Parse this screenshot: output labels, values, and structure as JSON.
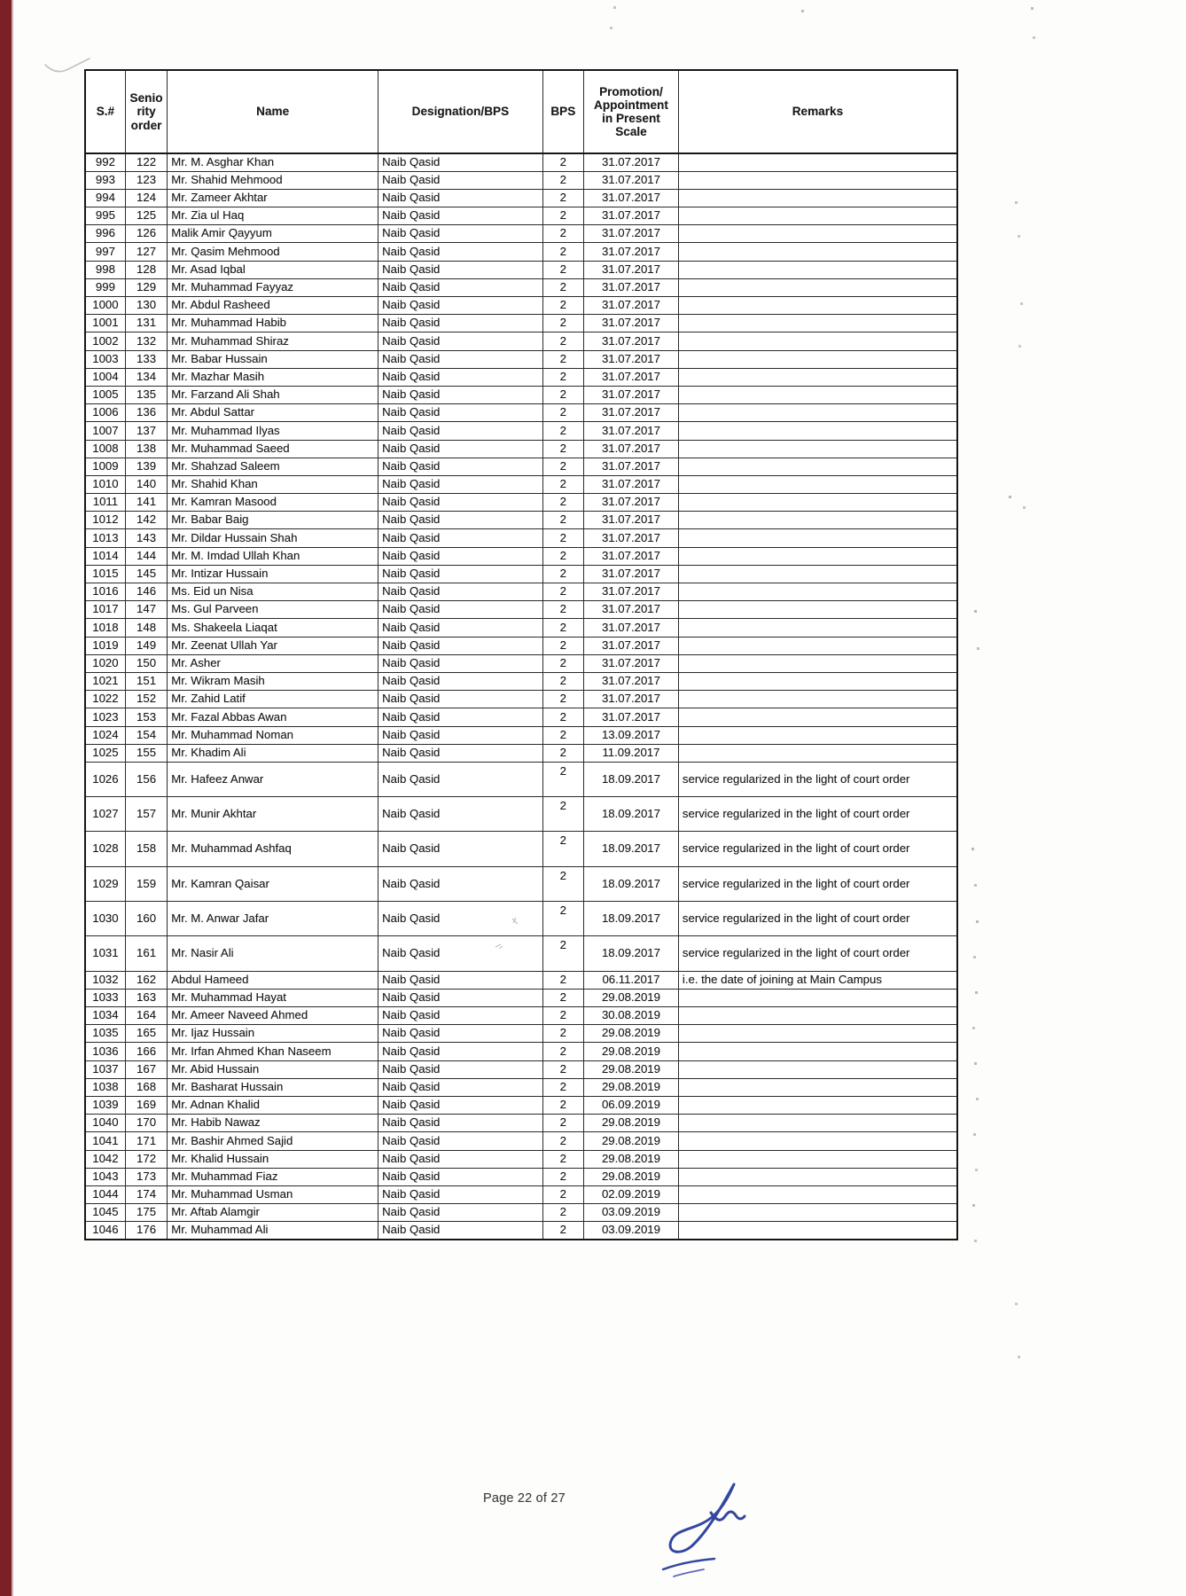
{
  "document": {
    "footer_text": "Page 22 of 27",
    "icons": {
      "signature": "ink-signature-flourish",
      "pen_mark": "stray-pen-mark"
    },
    "colors": {
      "ink": "#1a1a1a",
      "signature_ink": "#33479f",
      "scan_edge": "#7b2125"
    }
  },
  "table": {
    "headers": {
      "serial": "S.#",
      "seniority": "Senio\nrity\norder",
      "name": "Name",
      "designation": "Designation/BPS",
      "bps": "BPS",
      "promotion": "Promotion/\nAppointment\nin Present\nScale",
      "remarks": "Remarks"
    },
    "rows": [
      {
        "sno": "992",
        "order": "122",
        "name": "Mr. M. Asghar Khan",
        "designation": "Naib Qasid",
        "bps": "2",
        "date": "31.07.2017",
        "remarks": ""
      },
      {
        "sno": "993",
        "order": "123",
        "name": "Mr. Shahid Mehmood",
        "designation": "Naib Qasid",
        "bps": "2",
        "date": "31.07.2017",
        "remarks": ""
      },
      {
        "sno": "994",
        "order": "124",
        "name": "Mr. Zameer Akhtar",
        "designation": "Naib Qasid",
        "bps": "2",
        "date": "31.07.2017",
        "remarks": ""
      },
      {
        "sno": "995",
        "order": "125",
        "name": "Mr. Zia ul Haq",
        "designation": "Naib Qasid",
        "bps": "2",
        "date": "31.07.2017",
        "remarks": ""
      },
      {
        "sno": "996",
        "order": "126",
        "name": "Malik Amir Qayyum",
        "designation": "Naib Qasid",
        "bps": "2",
        "date": "31.07.2017",
        "remarks": ""
      },
      {
        "sno": "997",
        "order": "127",
        "name": "Mr. Qasim Mehmood",
        "designation": "Naib Qasid",
        "bps": "2",
        "date": "31.07.2017",
        "remarks": ""
      },
      {
        "sno": "998",
        "order": "128",
        "name": "Mr. Asad Iqbal",
        "designation": "Naib Qasid",
        "bps": "2",
        "date": "31.07.2017",
        "remarks": ""
      },
      {
        "sno": "999",
        "order": "129",
        "name": "Mr. Muhammad Fayyaz",
        "designation": "Naib Qasid",
        "bps": "2",
        "date": "31.07.2017",
        "remarks": ""
      },
      {
        "sno": "1000",
        "order": "130",
        "name": "Mr. Abdul Rasheed",
        "designation": "Naib Qasid",
        "bps": "2",
        "date": "31.07.2017",
        "remarks": ""
      },
      {
        "sno": "1001",
        "order": "131",
        "name": "Mr. Muhammad Habib",
        "designation": "Naib Qasid",
        "bps": "2",
        "date": "31.07.2017",
        "remarks": ""
      },
      {
        "sno": "1002",
        "order": "132",
        "name": "Mr. Muhammad Shiraz",
        "designation": "Naib Qasid",
        "bps": "2",
        "date": "31.07.2017",
        "remarks": ""
      },
      {
        "sno": "1003",
        "order": "133",
        "name": "Mr. Babar Hussain",
        "designation": "Naib Qasid",
        "bps": "2",
        "date": "31.07.2017",
        "remarks": ""
      },
      {
        "sno": "1004",
        "order": "134",
        "name": "Mr. Mazhar Masih",
        "designation": "Naib Qasid",
        "bps": "2",
        "date": "31.07.2017",
        "remarks": ""
      },
      {
        "sno": "1005",
        "order": "135",
        "name": "Mr. Farzand Ali Shah",
        "designation": "Naib Qasid",
        "bps": "2",
        "date": "31.07.2017",
        "remarks": ""
      },
      {
        "sno": "1006",
        "order": "136",
        "name": "Mr. Abdul Sattar",
        "designation": "Naib Qasid",
        "bps": "2",
        "date": "31.07.2017",
        "remarks": ""
      },
      {
        "sno": "1007",
        "order": "137",
        "name": "Mr. Muhammad Ilyas",
        "designation": "Naib Qasid",
        "bps": "2",
        "date": "31.07.2017",
        "remarks": ""
      },
      {
        "sno": "1008",
        "order": "138",
        "name": "Mr. Muhammad Saeed",
        "designation": "Naib Qasid",
        "bps": "2",
        "date": "31.07.2017",
        "remarks": ""
      },
      {
        "sno": "1009",
        "order": "139",
        "name": "Mr. Shahzad Saleem",
        "designation": "Naib Qasid",
        "bps": "2",
        "date": "31.07.2017",
        "remarks": ""
      },
      {
        "sno": "1010",
        "order": "140",
        "name": "Mr. Shahid Khan",
        "designation": "Naib Qasid",
        "bps": "2",
        "date": "31.07.2017",
        "remarks": ""
      },
      {
        "sno": "1011",
        "order": "141",
        "name": "Mr. Kamran Masood",
        "designation": "Naib Qasid",
        "bps": "2",
        "date": "31.07.2017",
        "remarks": ""
      },
      {
        "sno": "1012",
        "order": "142",
        "name": "Mr. Babar Baig",
        "designation": "Naib Qasid",
        "bps": "2",
        "date": "31.07.2017",
        "remarks": ""
      },
      {
        "sno": "1013",
        "order": "143",
        "name": "Mr. Dildar Hussain Shah",
        "designation": "Naib Qasid",
        "bps": "2",
        "date": "31.07.2017",
        "remarks": ""
      },
      {
        "sno": "1014",
        "order": "144",
        "name": "Mr. M. Imdad Ullah Khan",
        "designation": "Naib Qasid",
        "bps": "2",
        "date": "31.07.2017",
        "remarks": ""
      },
      {
        "sno": "1015",
        "order": "145",
        "name": "Mr. Intizar Hussain",
        "designation": "Naib Qasid",
        "bps": "2",
        "date": "31.07.2017",
        "remarks": ""
      },
      {
        "sno": "1016",
        "order": "146",
        "name": "Ms. Eid un Nisa",
        "designation": "Naib Qasid",
        "bps": "2",
        "date": "31.07.2017",
        "remarks": ""
      },
      {
        "sno": "1017",
        "order": "147",
        "name": "Ms. Gul Parveen",
        "designation": "Naib Qasid",
        "bps": "2",
        "date": "31.07.2017",
        "remarks": ""
      },
      {
        "sno": "1018",
        "order": "148",
        "name": "Ms. Shakeela Liaqat",
        "designation": "Naib Qasid",
        "bps": "2",
        "date": "31.07.2017",
        "remarks": ""
      },
      {
        "sno": "1019",
        "order": "149",
        "name": "Mr. Zeenat Ullah Yar",
        "designation": "Naib Qasid",
        "bps": "2",
        "date": "31.07.2017",
        "remarks": ""
      },
      {
        "sno": "1020",
        "order": "150",
        "name": "Mr. Asher",
        "designation": "Naib Qasid",
        "bps": "2",
        "date": "31.07.2017",
        "remarks": ""
      },
      {
        "sno": "1021",
        "order": "151",
        "name": "Mr. Wikram Masih",
        "designation": "Naib Qasid",
        "bps": "2",
        "date": "31.07.2017",
        "remarks": ""
      },
      {
        "sno": "1022",
        "order": "152",
        "name": "Mr. Zahid Latif",
        "designation": "Naib Qasid",
        "bps": "2",
        "date": "31.07.2017",
        "remarks": ""
      },
      {
        "sno": "1023",
        "order": "153",
        "name": "Mr. Fazal Abbas Awan",
        "designation": "Naib Qasid",
        "bps": "2",
        "date": "31.07.2017",
        "remarks": ""
      },
      {
        "sno": "1024",
        "order": "154",
        "name": "Mr. Muhammad Noman",
        "designation": "Naib Qasid",
        "bps": "2",
        "date": "13.09.2017",
        "remarks": ""
      },
      {
        "sno": "1025",
        "order": "155",
        "name": "Mr. Khadim Ali",
        "designation": "Naib Qasid",
        "bps": "2",
        "date": "11.09.2017",
        "remarks": ""
      },
      {
        "sno": "1026",
        "order": "156",
        "name": "Mr. Hafeez Anwar",
        "designation": "Naib Qasid",
        "bps": "2",
        "date": "18.09.2017",
        "remarks": "service regularized in the light of court order"
      },
      {
        "sno": "1027",
        "order": "157",
        "name": "Mr. Munir Akhtar",
        "designation": "Naib Qasid",
        "bps": "2",
        "date": "18.09.2017",
        "remarks": "service regularized in the light of court order"
      },
      {
        "sno": "1028",
        "order": "158",
        "name": "Mr. Muhammad Ashfaq",
        "designation": "Naib Qasid",
        "bps": "2",
        "date": "18.09.2017",
        "remarks": "service regularized in the light of court order"
      },
      {
        "sno": "1029",
        "order": "159",
        "name": "Mr. Kamran Qaisar",
        "designation": "Naib Qasid",
        "bps": "2",
        "date": "18.09.2017",
        "remarks": "service regularized in the light of court order"
      },
      {
        "sno": "1030",
        "order": "160",
        "name": "Mr. M. Anwar Jafar",
        "designation": "Naib Qasid",
        "bps": "2",
        "date": "18.09.2017",
        "remarks": "service regularized in the light of court order"
      },
      {
        "sno": "1031",
        "order": "161",
        "name": "Mr. Nasir Ali",
        "designation": "Naib Qasid",
        "bps": "2",
        "date": "18.09.2017",
        "remarks": "service regularized in the light of court order"
      },
      {
        "sno": "1032",
        "order": "162",
        "name": "Abdul Hameed",
        "designation": "Naib Qasid",
        "bps": "2",
        "date": "06.11.2017",
        "remarks": "i.e. the date of joining at Main Campus"
      },
      {
        "sno": "1033",
        "order": "163",
        "name": "Mr. Muhammad Hayat",
        "designation": "Naib Qasid",
        "bps": "2",
        "date": "29.08.2019",
        "remarks": ""
      },
      {
        "sno": "1034",
        "order": "164",
        "name": "Mr. Ameer Naveed Ahmed",
        "designation": "Naib Qasid",
        "bps": "2",
        "date": "30.08.2019",
        "remarks": ""
      },
      {
        "sno": "1035",
        "order": "165",
        "name": "Mr. Ijaz Hussain",
        "designation": "Naib Qasid",
        "bps": "2",
        "date": "29.08.2019",
        "remarks": ""
      },
      {
        "sno": "1036",
        "order": "166",
        "name": "Mr. Irfan Ahmed Khan Naseem",
        "designation": "Naib Qasid",
        "bps": "2",
        "date": "29.08.2019",
        "remarks": ""
      },
      {
        "sno": "1037",
        "order": "167",
        "name": "Mr. Abid Hussain",
        "designation": "Naib Qasid",
        "bps": "2",
        "date": "29.08.2019",
        "remarks": ""
      },
      {
        "sno": "1038",
        "order": "168",
        "name": "Mr. Basharat Hussain",
        "designation": "Naib Qasid",
        "bps": "2",
        "date": "29.08.2019",
        "remarks": ""
      },
      {
        "sno": "1039",
        "order": "169",
        "name": "Mr. Adnan Khalid",
        "designation": "Naib Qasid",
        "bps": "2",
        "date": "06.09.2019",
        "remarks": ""
      },
      {
        "sno": "1040",
        "order": "170",
        "name": "Mr. Habib Nawaz",
        "designation": "Naib Qasid",
        "bps": "2",
        "date": "29.08.2019",
        "remarks": ""
      },
      {
        "sno": "1041",
        "order": "171",
        "name": "Mr. Bashir Ahmed Sajid",
        "designation": "Naib Qasid",
        "bps": "2",
        "date": "29.08.2019",
        "remarks": ""
      },
      {
        "sno": "1042",
        "order": "172",
        "name": "Mr. Khalid Hussain",
        "designation": "Naib Qasid",
        "bps": "2",
        "date": "29.08.2019",
        "remarks": ""
      },
      {
        "sno": "1043",
        "order": "173",
        "name": "Mr. Muhammad Fiaz",
        "designation": "Naib Qasid",
        "bps": "2",
        "date": "29.08.2019",
        "remarks": ""
      },
      {
        "sno": "1044",
        "order": "174",
        "name": "Mr. Muhammad Usman",
        "designation": "Naib Qasid",
        "bps": "2",
        "date": "02.09.2019",
        "remarks": ""
      },
      {
        "sno": "1045",
        "order": "175",
        "name": "Mr. Aftab Alamgir",
        "designation": "Naib Qasid",
        "bps": "2",
        "date": "03.09.2019",
        "remarks": ""
      },
      {
        "sno": "1046",
        "order": "176",
        "name": "Mr. Muhammad Ali",
        "designation": "Naib Qasid",
        "bps": "2",
        "date": "03.09.2019",
        "remarks": ""
      }
    ]
  }
}
